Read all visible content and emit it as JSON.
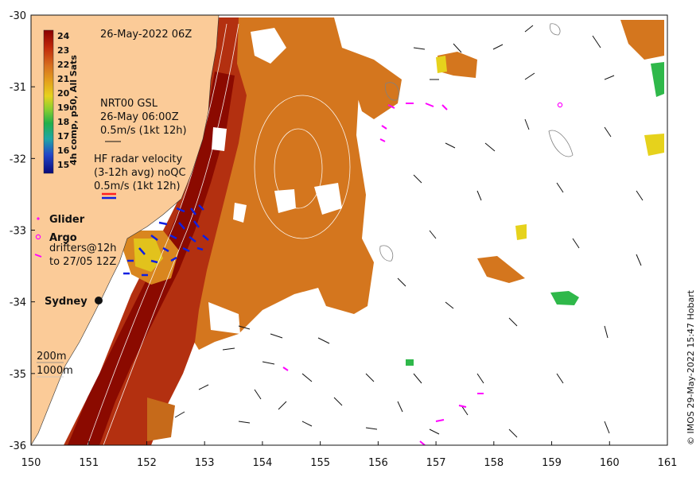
{
  "date_title": "26-May-2022 06Z",
  "colorbar": {
    "label": "4h comp, p50, All Sats",
    "ticks": [
      "24",
      "23",
      "22",
      "21",
      "20",
      "19",
      "18",
      "17",
      "16",
      "15"
    ],
    "colors": [
      "#8b0000",
      "#c0280a",
      "#d8701e",
      "#e4a21c",
      "#e6d21c",
      "#8ccf2e",
      "#20b04a",
      "#1fa6a6",
      "#2246c8",
      "#0a0a7a"
    ]
  },
  "gsl_legend": {
    "line1": "NRT00 GSL",
    "line2": "26-May 06:00Z",
    "line3": "0.5m/s (1kt 12h)"
  },
  "hf_legend": {
    "line1": "HF radar velocity",
    "line2": "(3-12h avg) noQC",
    "line3": "0.5m/s (1kt 12h)"
  },
  "glider_label": "Glider",
  "argo_label": "Argo",
  "drifter_label_line1": "drifters@12h",
  "drifter_label_line2": "to 27/05 12Z",
  "city_label": "Sydney",
  "isobath_labels": [
    "200m",
    "1000m"
  ],
  "credit": "© IMOS 29-May-2022 15:47 Hobart",
  "axes": {
    "x_ticks": [
      "150",
      "151",
      "152",
      "153",
      "154",
      "155",
      "156",
      "157",
      "158",
      "159",
      "160",
      "161"
    ],
    "y_ticks": [
      "-30",
      "-31",
      "-32",
      "-33",
      "-34",
      "-35",
      "-36"
    ],
    "xlim": [
      150,
      161
    ],
    "ylim": [
      -36,
      -30
    ]
  },
  "colors": {
    "land": "#fbcb98",
    "no_data": "#ffffff",
    "glider": "#ff00ff",
    "argo": "#ff00ff",
    "hf_radar": "#1020e0"
  }
}
